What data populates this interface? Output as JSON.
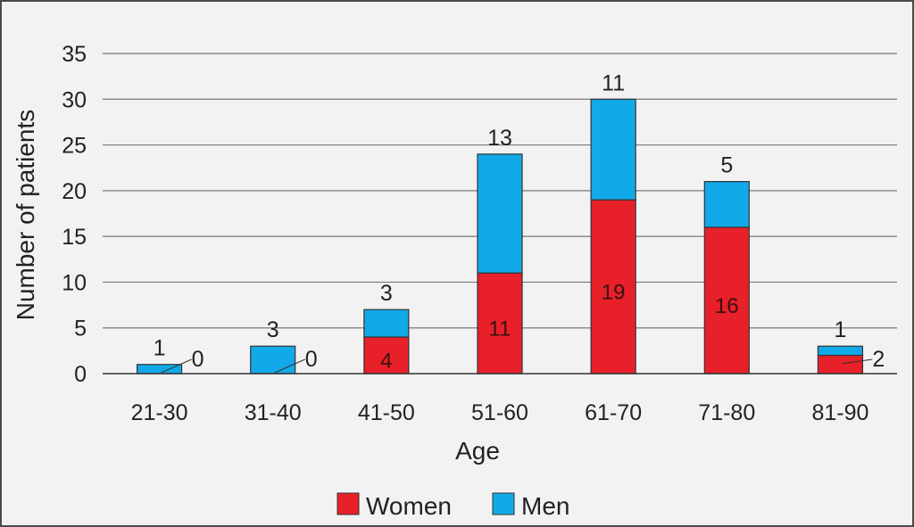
{
  "chart_data": {
    "type": "bar",
    "stacked": true,
    "categories": [
      "21-30",
      "31-40",
      "41-50",
      "51-60",
      "61-70",
      "71-80",
      "81-90"
    ],
    "series": [
      {
        "name": "Women",
        "values": [
          0,
          0,
          4,
          11,
          19,
          16,
          2
        ],
        "color": "#e8202a"
      },
      {
        "name": "Men",
        "values": [
          1,
          3,
          3,
          13,
          11,
          5,
          1
        ],
        "color": "#12a9e8"
      }
    ],
    "xlabel": "Age",
    "ylabel": "Number of patients",
    "ylim": [
      0,
      35
    ],
    "yticks": [
      0,
      5,
      10,
      15,
      20,
      25,
      30,
      35
    ],
    "grid": true,
    "legend": "bottom"
  }
}
